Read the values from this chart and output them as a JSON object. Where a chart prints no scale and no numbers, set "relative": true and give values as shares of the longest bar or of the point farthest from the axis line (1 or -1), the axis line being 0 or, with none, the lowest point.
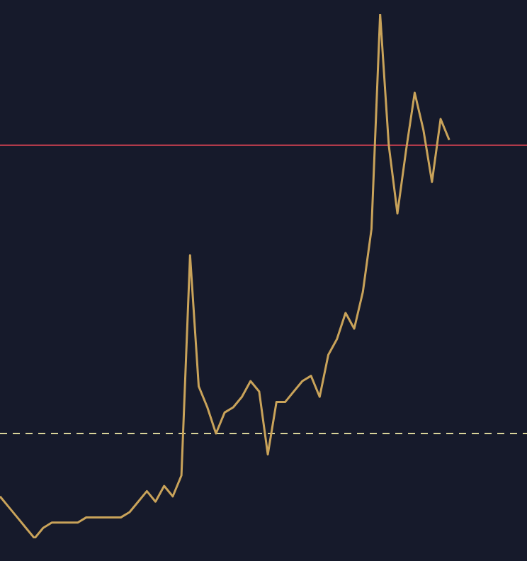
{
  "chart_data": {
    "type": "line",
    "relative": true,
    "legend": false,
    "marker": "none",
    "line_style": "solid",
    "categories": [
      null,
      null,
      null,
      null,
      null,
      null,
      null,
      null,
      null,
      null,
      null,
      null,
      null,
      null,
      null,
      null,
      null,
      null,
      null,
      null,
      null,
      null,
      null,
      null,
      null,
      null,
      null,
      null,
      null,
      null,
      null,
      null,
      null,
      null,
      null,
      null,
      null,
      null,
      null,
      null,
      null,
      null,
      null,
      null,
      null,
      null,
      null,
      null,
      null,
      null,
      null,
      null,
      null,
      null,
      null,
      null,
      null,
      null,
      null,
      null,
      null,
      null
    ],
    "series": [
      {
        "color": "#c9a35a",
        "values": [
          0.08,
          0.06,
          0.04,
          0.02,
          0.0,
          0.02,
          0.03,
          0.03,
          0.03,
          0.03,
          0.04,
          0.04,
          0.04,
          0.04,
          0.04,
          0.05,
          0.07,
          0.09,
          0.07,
          0.1,
          0.08,
          0.12,
          0.54,
          0.29,
          0.25,
          0.2,
          0.24,
          0.25,
          0.27,
          0.3,
          0.28,
          0.16,
          0.26,
          0.26,
          0.28,
          0.3,
          0.31,
          0.27,
          0.35,
          0.38,
          0.43,
          0.4,
          0.47,
          0.59,
          1,
          0.75,
          0.62,
          0.74,
          0.85,
          0.78,
          0.68,
          0.8,
          0.76,
          null,
          null,
          null,
          null,
          null,
          null,
          null,
          null,
          null
        ]
      }
    ],
    "ref_lines": [
      {
        "axis": "y",
        "value": 0.75,
        "color": "#b03a4a",
        "line_style": "solid"
      },
      {
        "axis": "y",
        "value": 0.2,
        "color": "#d9d49a",
        "line_style": "dashed"
      }
    ]
  }
}
